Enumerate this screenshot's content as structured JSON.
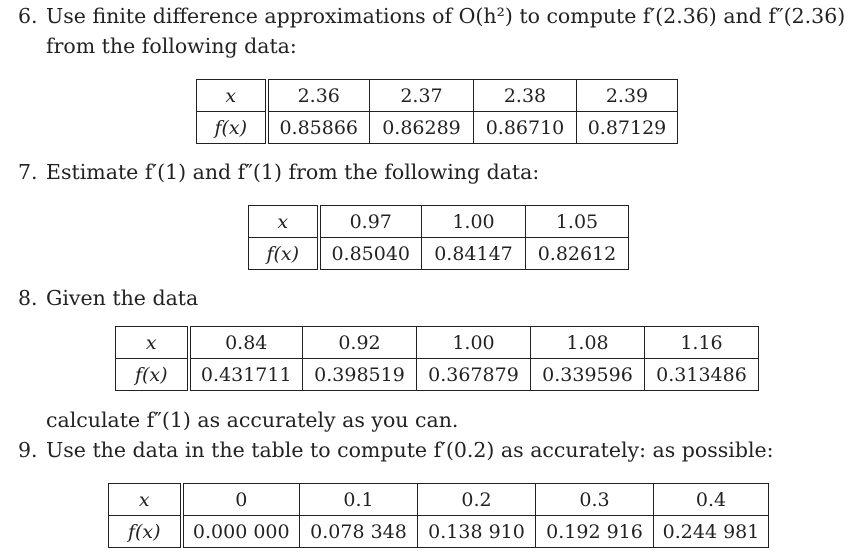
{
  "problems": [
    {
      "number": "6.",
      "line1": "Use finite difference approximations of O(h²) to compute f′(2.36) and f″(2.36)",
      "line2": "from the following data:",
      "table": {
        "x_label": "x",
        "fx_label": "f(x)",
        "x": [
          "2.36",
          "2.37",
          "2.38",
          "2.39"
        ],
        "fx": [
          "0.85866",
          "0.86289",
          "0.86710",
          "0.87129"
        ]
      }
    },
    {
      "number": "7.",
      "line1": "Estimate f′(1) and f″(1) from the following data:",
      "table": {
        "x_label": "x",
        "fx_label": "f(x)",
        "x": [
          "0.97",
          "1.00",
          "1.05"
        ],
        "fx": [
          "0.85040",
          "0.84147",
          "0.82612"
        ]
      }
    },
    {
      "number": "8.",
      "line1": "Given the data",
      "table": {
        "x_label": "x",
        "fx_label": "f(x)",
        "x": [
          "0.84",
          "0.92",
          "1.00",
          "1.08",
          "1.16"
        ],
        "fx": [
          "0.431711",
          "0.398519",
          "0.367879",
          "0.339596",
          "0.313486"
        ]
      },
      "after": "calculate f″(1) as accurately as you can."
    },
    {
      "number": "9.",
      "line1": "Use the data in the table to compute f′(0.2) as accurately: as possible:",
      "table": {
        "x_label": "x",
        "fx_label": "f(x)",
        "x": [
          "0",
          "0.1",
          "0.2",
          "0.3",
          "0.4"
        ],
        "fx": [
          "0.000 000",
          "0.078 348",
          "0.138 910",
          "0.192 916",
          "0.244 981"
        ]
      }
    }
  ]
}
